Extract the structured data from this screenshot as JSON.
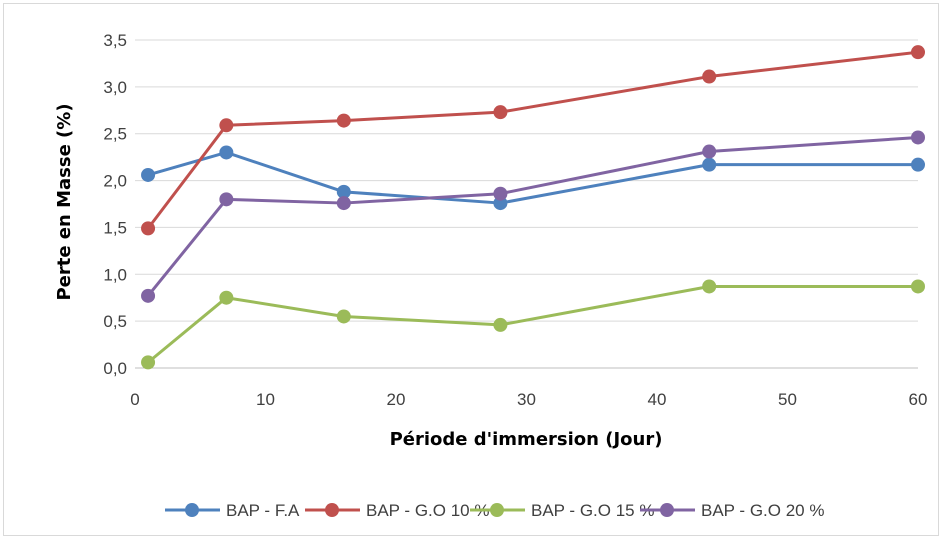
{
  "chart_data": {
    "type": "line",
    "xlabel": "Période d'immersion (Jour)",
    "ylabel": "Perte en Masse (%)",
    "xlim": [
      0,
      60
    ],
    "ylim": [
      0,
      3.5
    ],
    "x_ticks": [
      "0",
      "10",
      "20",
      "30",
      "40",
      "50",
      "60"
    ],
    "y_ticks": [
      "0,0",
      "0,5",
      "1,0",
      "1,5",
      "2,0",
      "2,5",
      "3,0",
      "3,5"
    ],
    "grid": "horizontal",
    "legend_position": "bottom",
    "x": [
      1,
      7,
      16,
      28,
      44,
      60
    ],
    "series": [
      {
        "name": "BAP - F.A",
        "color": "#4e81bd",
        "values": [
          2.06,
          2.3,
          1.88,
          1.76,
          2.17,
          2.17
        ]
      },
      {
        "name": "BAP - G.O 10 %",
        "color": "#c0504d",
        "values": [
          1.49,
          2.59,
          2.64,
          2.73,
          3.11,
          3.37
        ]
      },
      {
        "name": "BAP - G.O 15 %",
        "color": "#9bbb59",
        "values": [
          0.06,
          0.75,
          0.55,
          0.46,
          0.87,
          0.87
        ]
      },
      {
        "name": "BAP - G.O 20 %",
        "color": "#8064a2",
        "values": [
          0.77,
          1.8,
          1.76,
          1.86,
          2.31,
          2.46
        ]
      }
    ]
  }
}
